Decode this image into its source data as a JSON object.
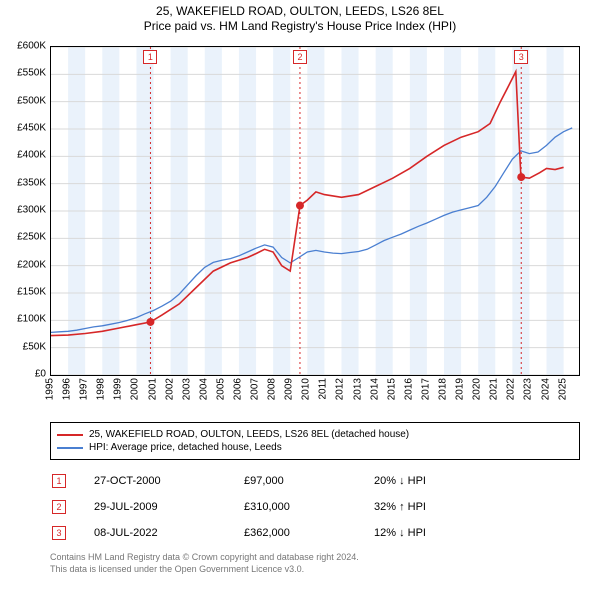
{
  "title": {
    "line1": "25, WAKEFIELD ROAD, OULTON, LEEDS, LS26 8EL",
    "line2": "Price paid vs. HM Land Registry's House Price Index (HPI)",
    "fontsize": 12,
    "color": "#000000"
  },
  "chart": {
    "type": "line",
    "background_color": "#ffffff",
    "x_domain": [
      1995,
      2025.9
    ],
    "y_domain": [
      0,
      600000
    ],
    "x_ticks": [
      1995,
      1996,
      1997,
      1998,
      1999,
      2000,
      2001,
      2002,
      2003,
      2004,
      2005,
      2006,
      2007,
      2008,
      2009,
      2010,
      2011,
      2012,
      2013,
      2014,
      2015,
      2016,
      2017,
      2018,
      2019,
      2020,
      2021,
      2022,
      2023,
      2024,
      2025
    ],
    "y_ticks": [
      0,
      50000,
      100000,
      150000,
      200000,
      250000,
      300000,
      350000,
      400000,
      450000,
      500000,
      550000,
      600000
    ],
    "y_tick_labels": [
      "£0",
      "£50K",
      "£100K",
      "£150K",
      "£200K",
      "£250K",
      "£300K",
      "£350K",
      "£400K",
      "£450K",
      "£500K",
      "£550K",
      "£600K"
    ],
    "gridline_color": "#d9d9d9",
    "year_band_color": "#eaf2fb",
    "tick_fontsize": 10,
    "series": {
      "hpi": {
        "label": "HPI: Average price, detached house, Leeds",
        "color": "#4a7fd1",
        "line_width": 1.3,
        "points": [
          [
            1995.0,
            78000
          ],
          [
            1995.5,
            79000
          ],
          [
            1996.0,
            80000
          ],
          [
            1996.5,
            82000
          ],
          [
            1997.0,
            85000
          ],
          [
            1997.5,
            88000
          ],
          [
            1998.0,
            90000
          ],
          [
            1998.5,
            93000
          ],
          [
            1999.0,
            96000
          ],
          [
            1999.5,
            100000
          ],
          [
            2000.0,
            105000
          ],
          [
            2000.5,
            112000
          ],
          [
            2001.0,
            118000
          ],
          [
            2001.5,
            126000
          ],
          [
            2002.0,
            135000
          ],
          [
            2002.5,
            148000
          ],
          [
            2003.0,
            165000
          ],
          [
            2003.5,
            182000
          ],
          [
            2004.0,
            197000
          ],
          [
            2004.5,
            206000
          ],
          [
            2005.0,
            210000
          ],
          [
            2005.5,
            213000
          ],
          [
            2006.0,
            218000
          ],
          [
            2006.5,
            225000
          ],
          [
            2007.0,
            232000
          ],
          [
            2007.5,
            238000
          ],
          [
            2008.0,
            234000
          ],
          [
            2008.5,
            215000
          ],
          [
            2009.0,
            205000
          ],
          [
            2009.5,
            215000
          ],
          [
            2010.0,
            225000
          ],
          [
            2010.5,
            228000
          ],
          [
            2011.0,
            225000
          ],
          [
            2011.5,
            223000
          ],
          [
            2012.0,
            222000
          ],
          [
            2012.5,
            224000
          ],
          [
            2013.0,
            226000
          ],
          [
            2013.5,
            230000
          ],
          [
            2014.0,
            238000
          ],
          [
            2014.5,
            246000
          ],
          [
            2015.0,
            252000
          ],
          [
            2015.5,
            258000
          ],
          [
            2016.0,
            265000
          ],
          [
            2016.5,
            272000
          ],
          [
            2017.0,
            278000
          ],
          [
            2017.5,
            285000
          ],
          [
            2018.0,
            292000
          ],
          [
            2018.5,
            298000
          ],
          [
            2019.0,
            302000
          ],
          [
            2019.5,
            306000
          ],
          [
            2020.0,
            310000
          ],
          [
            2020.5,
            325000
          ],
          [
            2021.0,
            345000
          ],
          [
            2021.5,
            370000
          ],
          [
            2022.0,
            395000
          ],
          [
            2022.5,
            410000
          ],
          [
            2023.0,
            405000
          ],
          [
            2023.5,
            408000
          ],
          [
            2024.0,
            420000
          ],
          [
            2024.5,
            435000
          ],
          [
            2025.0,
            445000
          ],
          [
            2025.5,
            452000
          ]
        ]
      },
      "subject": {
        "label": "25, WAKEFIELD ROAD, OULTON, LEEDS, LS26 8EL (detached house)",
        "color": "#d62728",
        "line_width": 1.6,
        "points": [
          [
            1995.0,
            72000
          ],
          [
            1996.0,
            73000
          ],
          [
            1997.0,
            76000
          ],
          [
            1998.0,
            80000
          ],
          [
            1999.0,
            86000
          ],
          [
            2000.0,
            92000
          ],
          [
            2000.82,
            97000
          ],
          [
            2001.5,
            110000
          ],
          [
            2002.5,
            130000
          ],
          [
            2003.5,
            160000
          ],
          [
            2004.5,
            190000
          ],
          [
            2005.5,
            205000
          ],
          [
            2006.5,
            215000
          ],
          [
            2007.0,
            222000
          ],
          [
            2007.5,
            230000
          ],
          [
            2008.0,
            225000
          ],
          [
            2008.5,
            200000
          ],
          [
            2009.0,
            190000
          ],
          [
            2009.57,
            310000
          ],
          [
            2010.0,
            320000
          ],
          [
            2010.5,
            335000
          ],
          [
            2011.0,
            330000
          ],
          [
            2012.0,
            325000
          ],
          [
            2013.0,
            330000
          ],
          [
            2014.0,
            345000
          ],
          [
            2015.0,
            360000
          ],
          [
            2016.0,
            378000
          ],
          [
            2017.0,
            400000
          ],
          [
            2018.0,
            420000
          ],
          [
            2019.0,
            435000
          ],
          [
            2020.0,
            445000
          ],
          [
            2020.7,
            460000
          ],
          [
            2021.3,
            500000
          ],
          [
            2021.8,
            530000
          ],
          [
            2022.2,
            555000
          ],
          [
            2022.5,
            362000
          ],
          [
            2023.0,
            360000
          ],
          [
            2023.6,
            370000
          ],
          [
            2024.0,
            378000
          ],
          [
            2024.5,
            376000
          ],
          [
            2025.0,
            380000
          ]
        ]
      }
    },
    "marker_lines": {
      "color": "#d62728",
      "dash": "2,3",
      "box_border": "#d62728",
      "box_text": "#d62728",
      "items": [
        {
          "n": "1",
          "x": 2000.82,
          "y": 97000
        },
        {
          "n": "2",
          "x": 2009.57,
          "y": 310000
        },
        {
          "n": "3",
          "x": 2022.52,
          "y": 362000
        }
      ]
    }
  },
  "legend": {
    "border_color": "#000000",
    "fontsize": 10
  },
  "markers_table": [
    {
      "n": "1",
      "date": "27-OCT-2000",
      "price": "£97,000",
      "diff": "20% ↓ HPI"
    },
    {
      "n": "2",
      "date": "29-JUL-2009",
      "price": "£310,000",
      "diff": "32% ↑ HPI"
    },
    {
      "n": "3",
      "date": "08-JUL-2022",
      "price": "£362,000",
      "diff": "12% ↓ HPI"
    }
  ],
  "footer": {
    "line1": "Contains HM Land Registry data © Crown copyright and database right 2024.",
    "line2": "This data is licensed under the Open Government Licence v3.0.",
    "color": "#777777",
    "fontsize": 9
  }
}
